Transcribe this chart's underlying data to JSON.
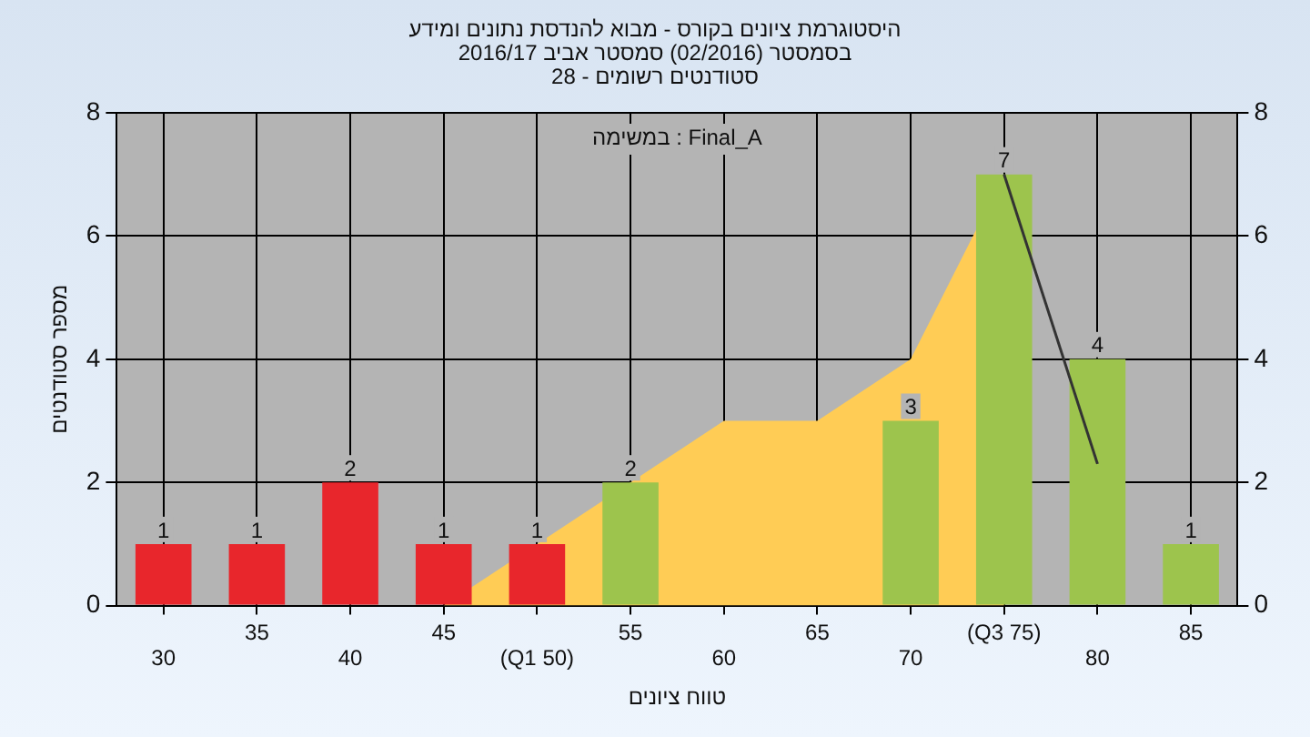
{
  "chart_data": {
    "type": "bar",
    "title": "היסטוגרמת ציונים בקורס - מבוא להנדסת נתונים ומידע",
    "subtitle": "בסמסטר  (02/2016)  סמסטר אביב 2016/17\nסטודנטים רשומים - 28",
    "xlabel": "טווח ציונים",
    "ylabel": "מספר סטודנטים",
    "annotations": [
      "Final_A : במשימה"
    ],
    "categories": [
      "30",
      "35",
      "40",
      "45",
      "(Q1 50)",
      "55",
      "60",
      "65",
      "70",
      "(Q3 75)",
      "80",
      "85"
    ],
    "series": [
      {
        "type": "area",
        "color": "#ffcc55",
        "values": [
          null,
          null,
          null,
          0,
          1,
          2,
          3,
          3,
          4,
          7,
          null,
          null
        ]
      },
      {
        "type": "line",
        "color": "#333333",
        "values": [
          null,
          null,
          null,
          null,
          null,
          null,
          null,
          null,
          null,
          7,
          2.3,
          null
        ]
      },
      {
        "colors": [
          "#e8262c",
          "#e8262c",
          "#e8262c",
          "#e8262c",
          "#e8262c",
          "#9dc44d",
          "#9dc44d",
          "#9dc44d",
          "#9dc44d",
          "#9dc44d",
          "#9dc44d",
          "#9dc44d"
        ],
        "values": [
          1,
          1,
          2,
          1,
          1,
          2,
          0,
          0,
          3,
          7,
          4,
          1
        ],
        "value_labels": [
          "1",
          "1",
          "2",
          "1",
          "1",
          "2",
          null,
          null,
          "3",
          "7",
          "4",
          "1"
        ]
      }
    ],
    "ylim": [
      0,
      8
    ],
    "yticks": [
      0,
      2,
      4,
      6,
      8
    ],
    "y2lim": [
      0,
      8
    ],
    "y2ticks": [
      0,
      2,
      4,
      6,
      8
    ],
    "grid": true,
    "legend": false
  }
}
